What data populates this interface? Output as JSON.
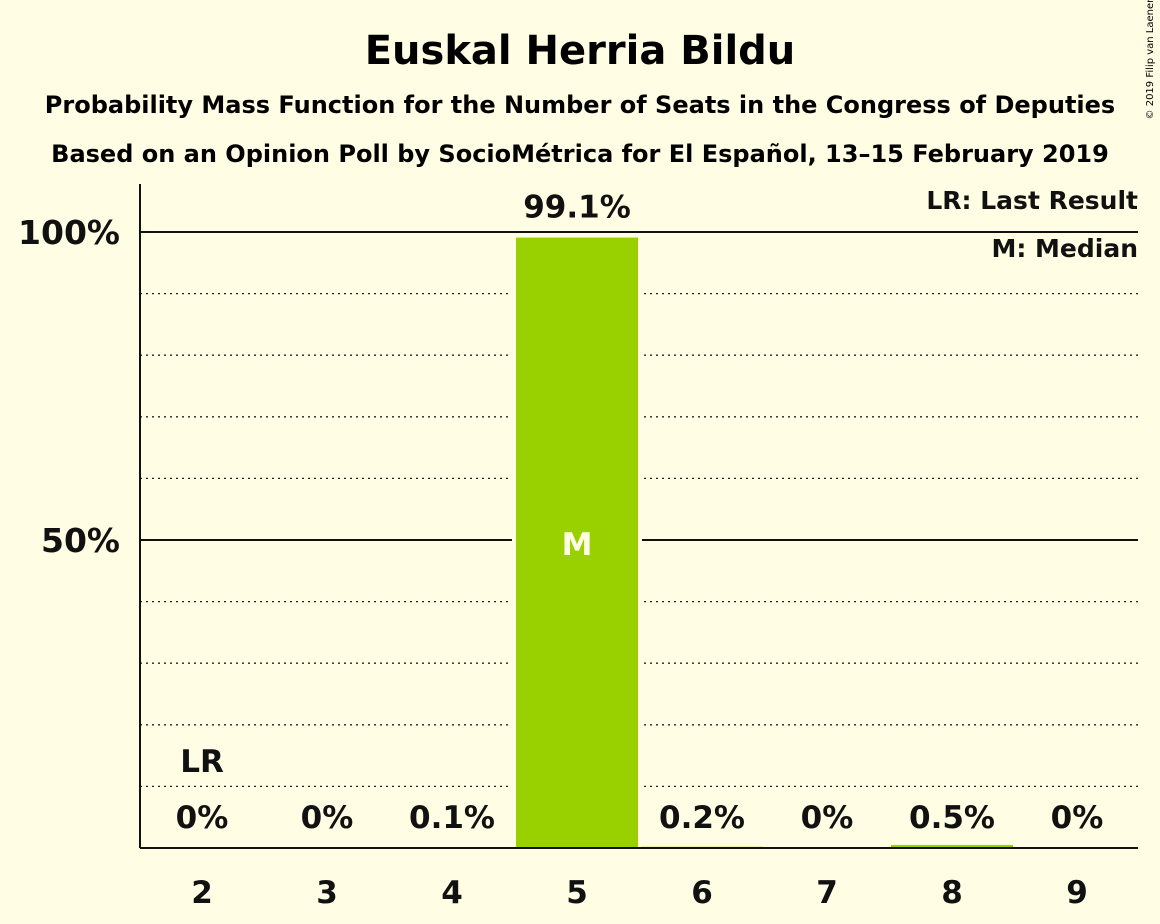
{
  "chart_data": {
    "type": "bar",
    "title": "Euskal Herria Bildu",
    "subtitle_1": "Probability Mass Function for the Number of Seats in the Congress of Deputies",
    "subtitle_2": "Based on an Opinion Poll by SocioMétrica for El Español, 13–15 February 2019",
    "copyright": "© 2019 Filip van Laenen",
    "categories": [
      "2",
      "3",
      "4",
      "5",
      "6",
      "7",
      "8",
      "9"
    ],
    "values": [
      0,
      0,
      0.1,
      99.1,
      0.2,
      0,
      0.5,
      0
    ],
    "value_labels": [
      "0%",
      "0%",
      "0.1%",
      "99.1%",
      "0.2%",
      "0%",
      "0.5%",
      "0%"
    ],
    "ylim": [
      0,
      100
    ],
    "yticks": [
      {
        "value": 50,
        "label": "50%"
      },
      {
        "value": 100,
        "label": "100%"
      }
    ],
    "minor_gridlines": [
      10,
      20,
      30,
      40,
      60,
      70,
      80,
      90
    ],
    "last_result": {
      "category": "2",
      "label": "LR"
    },
    "median": {
      "category": "5",
      "label": "M"
    },
    "legend": {
      "placement": "top-right",
      "entries": [
        "LR: Last Result",
        "M: Median"
      ]
    },
    "colors": {
      "bar": "#99D100",
      "background": "#FFFDE3",
      "median_text": "#FFFDE3"
    }
  }
}
